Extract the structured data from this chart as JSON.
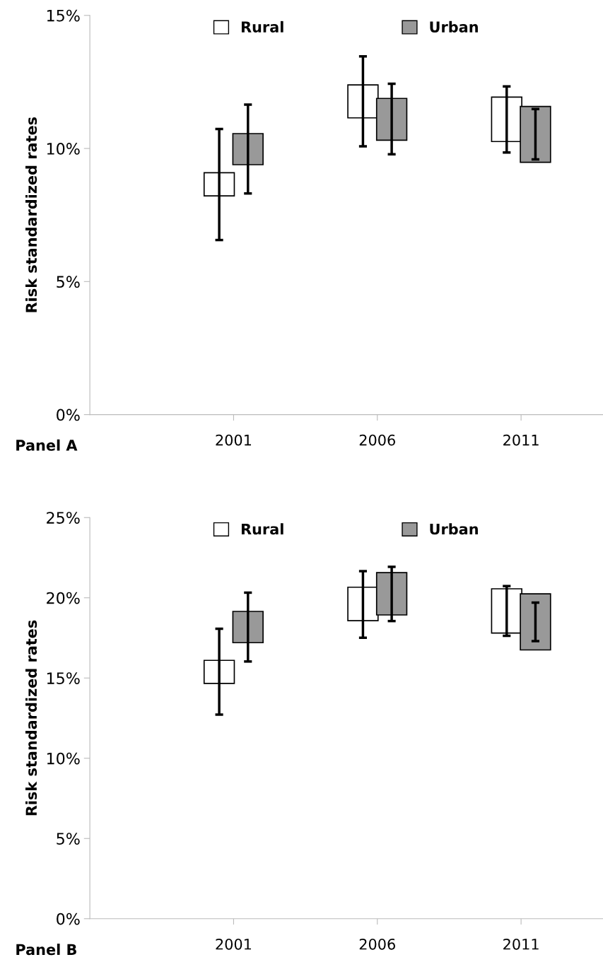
{
  "chart_data": [
    {
      "type": "bar",
      "ylabel": "Risk standardized rates",
      "annotations": [
        "Panel A"
      ],
      "categories": [
        "2001",
        "2006",
        "2011"
      ],
      "series": [
        {
          "name": "Rural",
          "color": "#ffffff",
          "base": [
            8.22,
            11.15,
            10.26
          ],
          "values": [
            0.87,
            1.24,
            1.67
          ],
          "errors": [
            [
              6.56,
              10.73
            ],
            [
              10.08,
              13.46
            ],
            [
              9.85,
              12.33
            ]
          ]
        },
        {
          "name": "Urban",
          "color": "#999999",
          "base": [
            9.39,
            10.31,
            9.48
          ],
          "values": [
            1.17,
            1.57,
            2.1
          ],
          "errors": [
            [
              8.31,
              11.65
            ],
            [
              9.78,
              12.43
            ],
            [
              9.59,
              11.48
            ]
          ]
        }
      ],
      "ylim": [
        0,
        15
      ],
      "yticks": [
        {
          "value": 0,
          "label": "0%"
        },
        {
          "value": 5,
          "label": "5%"
        },
        {
          "value": 10,
          "label": "10%"
        },
        {
          "value": 15,
          "label": "15%"
        }
      ],
      "grid": false,
      "legend": "top"
    },
    {
      "type": "bar",
      "ylabel": "Risk standardized rates",
      "annotations": [
        "Panel B"
      ],
      "categories": [
        "2001",
        "2006",
        "2011"
      ],
      "series": [
        {
          "name": "Rural",
          "color": "#ffffff",
          "base": [
            14.66,
            18.57,
            17.8
          ],
          "values": [
            1.44,
            2.09,
            2.76
          ],
          "errors": [
            [
              12.72,
              18.07
            ],
            [
              17.51,
              21.66
            ],
            [
              17.63,
              20.73
            ]
          ]
        },
        {
          "name": "Urban",
          "color": "#999999",
          "base": [
            17.2,
            18.93,
            16.75
          ],
          "values": [
            1.95,
            2.64,
            3.5
          ],
          "errors": [
            [
              16.03,
              20.32
            ],
            [
              18.55,
              21.93
            ],
            [
              17.3,
              19.7
            ]
          ]
        }
      ],
      "ylim": [
        0,
        25
      ],
      "yticks": [
        {
          "value": 0,
          "label": "0%"
        },
        {
          "value": 5,
          "label": "5%"
        },
        {
          "value": 10,
          "label": "10%"
        },
        {
          "value": 15,
          "label": "15%"
        },
        {
          "value": 20,
          "label": "20%"
        },
        {
          "value": 25,
          "label": "25%"
        }
      ],
      "grid": false,
      "legend": "top"
    }
  ]
}
